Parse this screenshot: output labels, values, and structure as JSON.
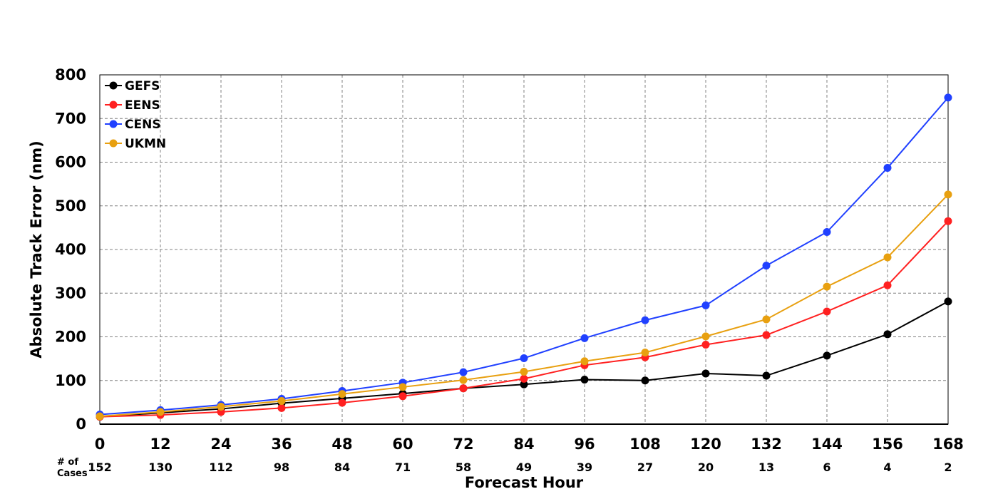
{
  "chart_data": {
    "type": "line",
    "title": "",
    "xlabel": "Forecast Hour",
    "ylabel": "Absolute Track Error (nm)",
    "x": [
      0,
      12,
      24,
      36,
      48,
      60,
      72,
      84,
      96,
      108,
      120,
      132,
      144,
      156,
      168
    ],
    "xlim": [
      0,
      168
    ],
    "ylim": [
      0,
      800
    ],
    "yticks": [
      0,
      100,
      200,
      300,
      400,
      500,
      600,
      700,
      800
    ],
    "grid": true,
    "legend_position": "top-left",
    "cases_label": "# of\nCases",
    "cases_label_lines": [
      "# of",
      "Cases"
    ],
    "cases": [
      152,
      130,
      112,
      98,
      84,
      71,
      58,
      49,
      39,
      27,
      20,
      13,
      6,
      4,
      2
    ],
    "series": [
      {
        "name": "GEFS",
        "color": "#000000",
        "values": [
          17,
          26,
          35,
          48,
          59,
          70,
          82,
          91,
          102,
          100,
          116,
          111,
          157,
          206,
          281
        ]
      },
      {
        "name": "EENS",
        "color": "#ff2020",
        "values": [
          17,
          21,
          28,
          37,
          49,
          64,
          82,
          104,
          135,
          153,
          182,
          204,
          258,
          318,
          465
        ]
      },
      {
        "name": "CENS",
        "color": "#2040ff",
        "values": [
          22,
          32,
          44,
          58,
          76,
          95,
          119,
          151,
          197,
          238,
          272,
          363,
          440,
          587,
          748
        ]
      },
      {
        "name": "UKMN",
        "color": "#e8a010",
        "values": [
          18,
          28,
          40,
          53,
          69,
          85,
          101,
          120,
          144,
          164,
          201,
          240,
          315,
          382,
          526
        ]
      }
    ]
  }
}
